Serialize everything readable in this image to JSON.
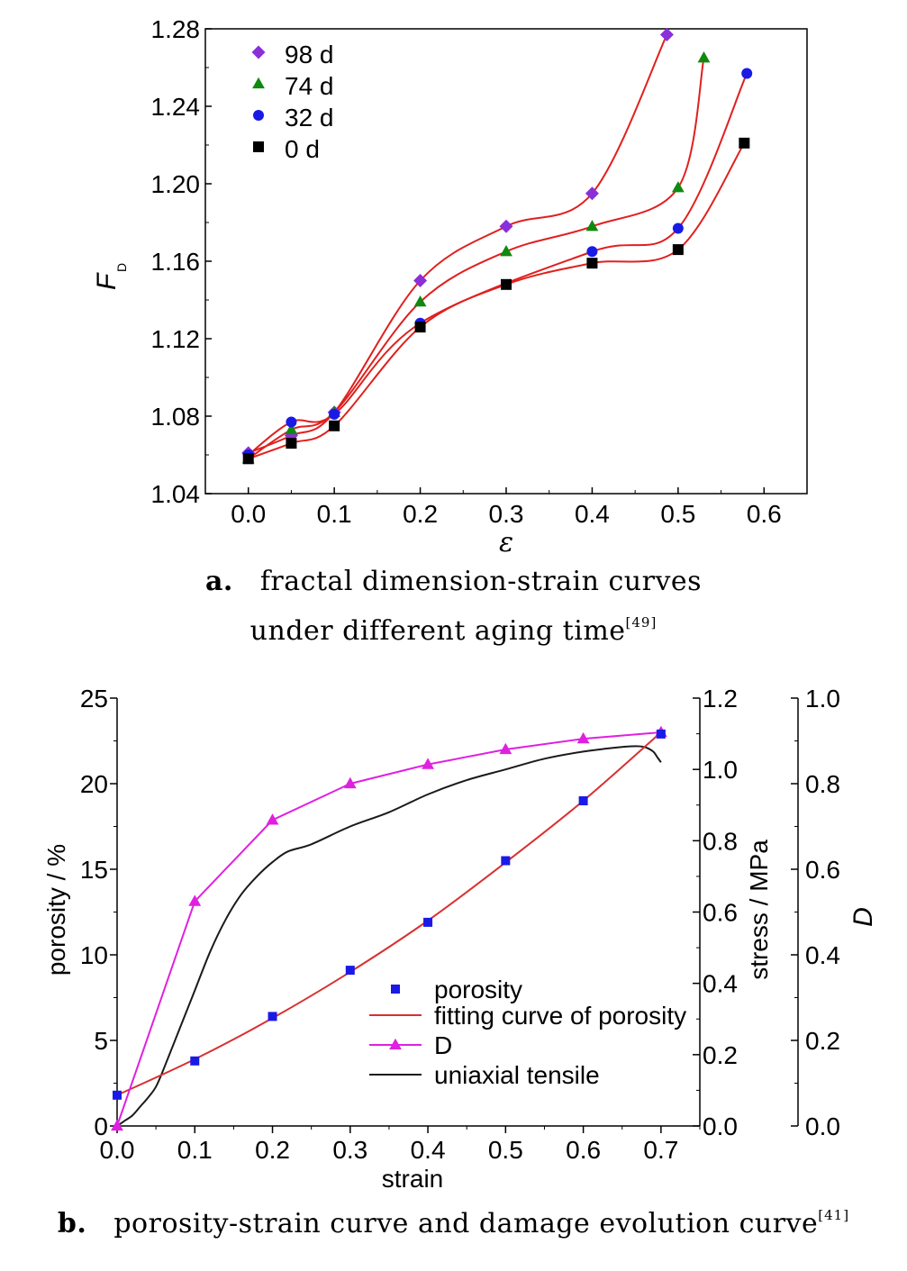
{
  "chart_data": [
    {
      "type": "scatter",
      "ylabel": "F",
      "ylabel_sub": "D",
      "xlabel": "ε",
      "xlim": [
        -0.05,
        0.65
      ],
      "ylim": [
        1.04,
        1.28
      ],
      "xticks": [
        "0.0",
        "0.1",
        "0.2",
        "0.3",
        "0.4",
        "0.5",
        "0.6"
      ],
      "yticks": [
        "1.04",
        "1.08",
        "1.12",
        "1.16",
        "1.20",
        "1.24",
        "1.28"
      ],
      "legend_position": "top-left",
      "fit_color": "#e0201e",
      "series": [
        {
          "name": "98 d",
          "marker": "diamond",
          "color": "#8b2fd9",
          "x": [
            0.0,
            0.05,
            0.1,
            0.2,
            0.3,
            0.4,
            0.487
          ],
          "y": [
            1.061,
            1.07,
            1.082,
            1.15,
            1.178,
            1.195,
            1.277
          ]
        },
        {
          "name": "74 d",
          "marker": "triangle",
          "color": "#0f8a0f",
          "x": [
            0.0,
            0.05,
            0.1,
            0.2,
            0.3,
            0.4,
            0.5,
            0.53
          ],
          "y": [
            1.058,
            1.073,
            1.082,
            1.139,
            1.165,
            1.178,
            1.198,
            1.265
          ]
        },
        {
          "name": "32 d",
          "marker": "circle",
          "color": "#1a1ae6",
          "x": [
            0.0,
            0.05,
            0.1,
            0.2,
            0.4,
            0.5,
            0.58
          ],
          "y": [
            1.06,
            1.077,
            1.081,
            1.128,
            1.165,
            1.177,
            1.257
          ]
        },
        {
          "name": "0 d",
          "marker": "square",
          "color": "#000000",
          "x": [
            0.0,
            0.05,
            0.1,
            0.2,
            0.3,
            0.4,
            0.5,
            0.577
          ],
          "y": [
            1.058,
            1.066,
            1.075,
            1.126,
            1.148,
            1.159,
            1.166,
            1.221
          ]
        }
      ]
    },
    {
      "type": "line",
      "xlabel": "strain",
      "ylabel_left": "porosity / %",
      "ylabel_stress": "stress / MPa",
      "ylabel_d": "D",
      "xlim": [
        0.0,
        0.75
      ],
      "ylim_left": [
        0,
        25
      ],
      "ylim_stress": [
        0.0,
        1.2
      ],
      "ylim_d": [
        0.0,
        1.0
      ],
      "xticks": [
        "0.0",
        "0.1",
        "0.2",
        "0.3",
        "0.4",
        "0.5",
        "0.6",
        "0.7"
      ],
      "yticks_left": [
        "0",
        "5",
        "10",
        "15",
        "20",
        "25"
      ],
      "yticks_stress": [
        "0.0",
        "0.2",
        "0.4",
        "0.6",
        "0.8",
        "1.0",
        "1.2"
      ],
      "yticks_d": [
        "0.0",
        "0.2",
        "0.4",
        "0.6",
        "0.8",
        "1.0"
      ],
      "legend_position": "bottom-right",
      "series": [
        {
          "name": "porosity",
          "axis": "left",
          "marker": "square",
          "color": "#1a1ae6",
          "x": [
            0.0,
            0.1,
            0.2,
            0.3,
            0.4,
            0.5,
            0.6,
            0.7
          ],
          "y": [
            1.8,
            3.8,
            6.4,
            9.1,
            11.9,
            15.5,
            19.0,
            22.9
          ]
        },
        {
          "name": "fitting curve of porosity",
          "axis": "left",
          "color": "#d93030",
          "x": [
            0.0,
            0.1,
            0.2,
            0.3,
            0.4,
            0.5,
            0.6,
            0.7
          ],
          "y": [
            1.8,
            3.9,
            6.3,
            9.0,
            12.0,
            15.4,
            19.0,
            23.0
          ]
        },
        {
          "name": "D",
          "axis": "d",
          "marker": "triangle",
          "color": "#e020e0",
          "x": [
            0.0,
            0.1,
            0.2,
            0.3,
            0.4,
            0.5,
            0.6,
            0.7
          ],
          "y": [
            0.0,
            0.525,
            0.715,
            0.8,
            0.845,
            0.88,
            0.905,
            0.92
          ]
        },
        {
          "name": "uniaxial tensile",
          "axis": "stress",
          "color": "#1a1a1a",
          "x": [
            0.0,
            0.01,
            0.02,
            0.03,
            0.04,
            0.05,
            0.06,
            0.08,
            0.1,
            0.12,
            0.14,
            0.16,
            0.18,
            0.2,
            0.22,
            0.25,
            0.3,
            0.35,
            0.4,
            0.45,
            0.5,
            0.55,
            0.6,
            0.65,
            0.67,
            0.68,
            0.69,
            0.695,
            0.7
          ],
          "y": [
            0.0,
            0.015,
            0.03,
            0.055,
            0.08,
            0.11,
            0.16,
            0.27,
            0.38,
            0.49,
            0.58,
            0.65,
            0.7,
            0.74,
            0.77,
            0.79,
            0.84,
            0.88,
            0.93,
            0.97,
            1.0,
            1.03,
            1.05,
            1.063,
            1.065,
            1.062,
            1.05,
            1.035,
            1.02
          ]
        }
      ]
    }
  ],
  "captions": {
    "a_label": "a.",
    "a_line1": "fractal dimension-strain curves",
    "a_line2": "under different aging time",
    "a_ref": "[49]",
    "b_label": "b.",
    "b_text": "porosity-strain curve and damage evolution curve",
    "b_ref": "[41]"
  }
}
